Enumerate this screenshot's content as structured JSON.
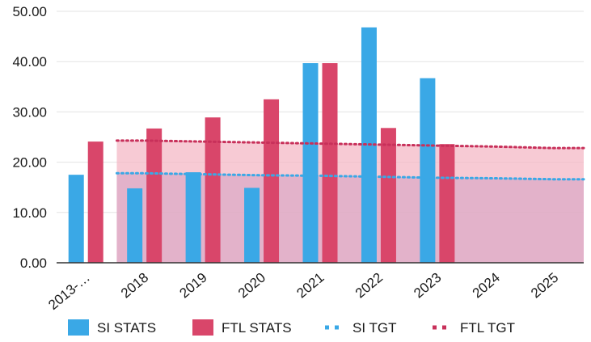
{
  "chart_data": {
    "type": "bar",
    "title": "",
    "xlabel": "",
    "ylabel": "",
    "categories": [
      "2013-…",
      "2018",
      "2019",
      "2020",
      "2021",
      "2022",
      "2023",
      "2024",
      "2025"
    ],
    "ylim": [
      0,
      50
    ],
    "yticks": [
      "0.00",
      "10.00",
      "20.00",
      "30.00",
      "40.00",
      "50.00"
    ],
    "grid": true,
    "legend_position": "bottom",
    "series": [
      {
        "name": "SI STATS",
        "kind": "bar",
        "color": "#3aa8e6",
        "values": [
          17.5,
          14.8,
          18.0,
          14.9,
          39.7,
          46.8,
          36.7,
          null,
          null
        ]
      },
      {
        "name": "FTL STATS",
        "kind": "bar",
        "color": "#d9466a",
        "values": [
          24.1,
          26.7,
          28.9,
          32.5,
          39.7,
          26.8,
          23.6,
          null,
          null
        ]
      },
      {
        "name": "SI TGT",
        "kind": "dotted-line-area",
        "color": "#3aa8e6",
        "values": [
          null,
          17.8,
          17.6,
          17.4,
          17.3,
          17.1,
          16.9,
          16.8,
          16.6
        ]
      },
      {
        "name": "FTL TGT",
        "kind": "dotted-line-area",
        "color": "#c8305a",
        "values": [
          null,
          24.3,
          24.1,
          23.9,
          23.7,
          23.5,
          23.3,
          23.1,
          22.8
        ]
      }
    ]
  }
}
